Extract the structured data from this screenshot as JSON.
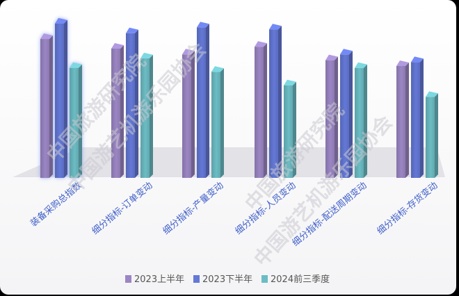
{
  "chart_data": {
    "type": "bar",
    "categories": [
      "装备采购总指数",
      "细分指标-订单变动",
      "细分指标-产量变动",
      "细分指标-人员变动",
      "细分指标-配送周期变动",
      "细分指标-存货变动"
    ],
    "series": [
      {
        "name": "2023上半年",
        "color": "#9b86c4",
        "values": [
          72,
          67,
          64,
          68,
          61,
          58
        ]
      },
      {
        "name": "2023下半年",
        "color": "#6478d6",
        "values": [
          80,
          75,
          78,
          77,
          64,
          60
        ]
      },
      {
        "name": "2024前三季度",
        "color": "#6cbcc4",
        "values": [
          57,
          62,
          55,
          48,
          57,
          42
        ]
      }
    ],
    "ylim": [
      0,
      85
    ],
    "grid": false,
    "legend_position": "bottom"
  },
  "watermarks": [
    "中国旅游研究院",
    "中国游艺机游乐园协会"
  ]
}
